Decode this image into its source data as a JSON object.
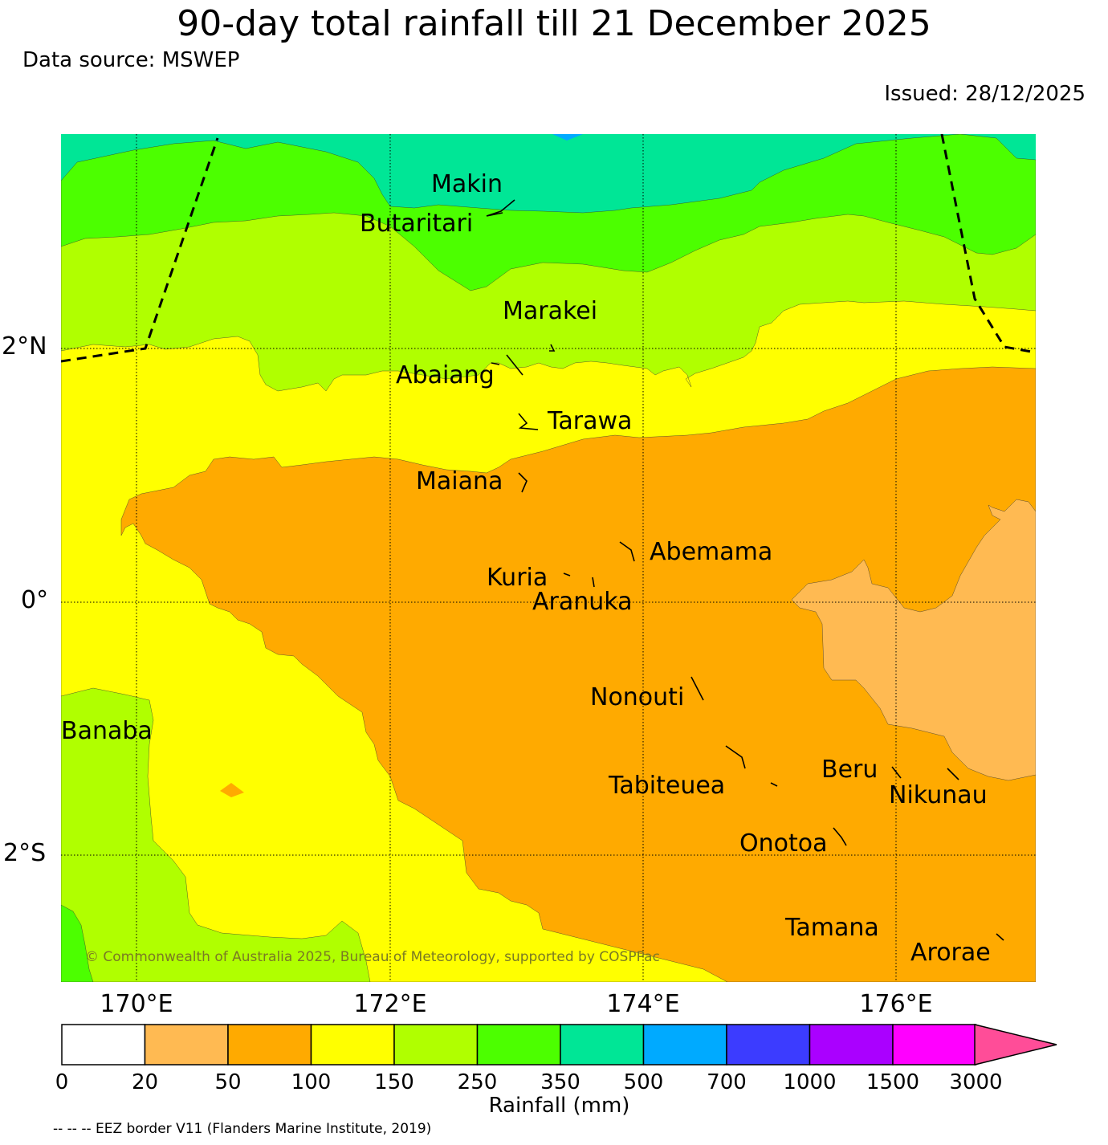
{
  "title": "90-day total rainfall till 21 December 2025",
  "data_source": "Data source: MSWEP",
  "issued": "Issued: 28/12/2025",
  "copyright": "© Commonwealth of Australia 2025, Bureau of Meteorology, supported by COSPPac",
  "eez_note": "-- -- -- EEZ border V11 (Flanders Marine Institute, 2019)",
  "axes": {
    "lat_labels": [
      "2°N",
      "0°",
      "2°S"
    ],
    "lon_labels": [
      "170°E",
      "172°E",
      "174°E",
      "176°E"
    ]
  },
  "places": [
    {
      "name": "Makin"
    },
    {
      "name": "Butaritari"
    },
    {
      "name": "Marakei"
    },
    {
      "name": "Abaiang"
    },
    {
      "name": "Tarawa"
    },
    {
      "name": "Maiana"
    },
    {
      "name": "Abemama"
    },
    {
      "name": "Kuria"
    },
    {
      "name": "Aranuka"
    },
    {
      "name": "Banaba"
    },
    {
      "name": "Nonouti"
    },
    {
      "name": "Beru"
    },
    {
      "name": "Tabiteuea"
    },
    {
      "name": "Nikunau"
    },
    {
      "name": "Onotoa"
    },
    {
      "name": "Tamana"
    },
    {
      "name": "Arorae"
    }
  ],
  "colorbar": {
    "label": "Rainfall (mm)",
    "ticks": [
      "0",
      "20",
      "50",
      "100",
      "150",
      "250",
      "350",
      "500",
      "700",
      "1000",
      "1500",
      "3000"
    ],
    "colors": [
      "#ffffff",
      "#ffba52",
      "#ffaa00",
      "#ffff00",
      "#b0ff00",
      "#4cff00",
      "#00e696",
      "#00aaff",
      "#3c3cff",
      "#aa00ff",
      "#ff00ff",
      "#ff4d98"
    ]
  },
  "colors": {
    "band_20_50": "#ffba52",
    "band_50_100": "#ffaa00",
    "band_100_150": "#ffff00",
    "band_150_250": "#b0ff00",
    "band_250_350": "#4cff00",
    "band_350_500": "#00e696",
    "band_500_700": "#00aaff"
  }
}
